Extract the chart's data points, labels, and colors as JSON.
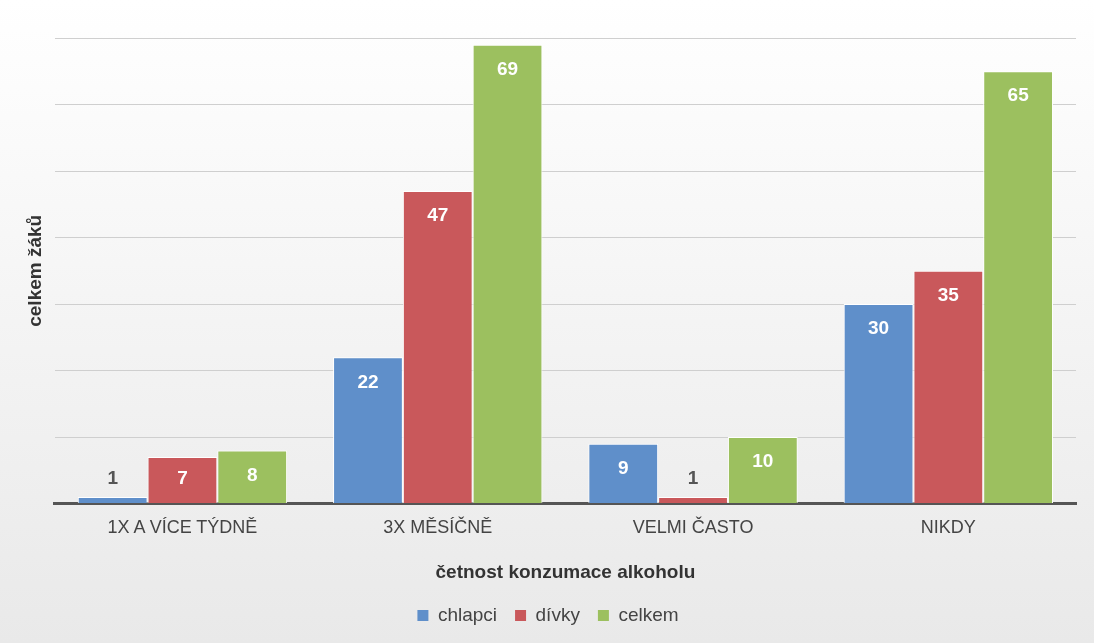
{
  "chart_data": {
    "type": "bar",
    "xlabel": "četnost konzumace alkoholu",
    "ylabel": "celkem žáků",
    "categories": [
      "1X A VÍCE TÝDNĚ",
      "3X MĚSÍČNĚ",
      "VELMI ČASTO",
      "NIKDY"
    ],
    "series": [
      {
        "name": "chlapci",
        "color": "#5f8fca",
        "values": [
          1,
          22,
          9,
          30
        ]
      },
      {
        "name": "dívky",
        "color": "#c9585b",
        "values": [
          7,
          47,
          1,
          35
        ]
      },
      {
        "name": "celkem",
        "color": "#9cc05f",
        "values": [
          8,
          69,
          10,
          65
        ]
      }
    ],
    "tick_labels": "x",
    "grid": "y",
    "legend": "bottom",
    "data_labels": true
  }
}
